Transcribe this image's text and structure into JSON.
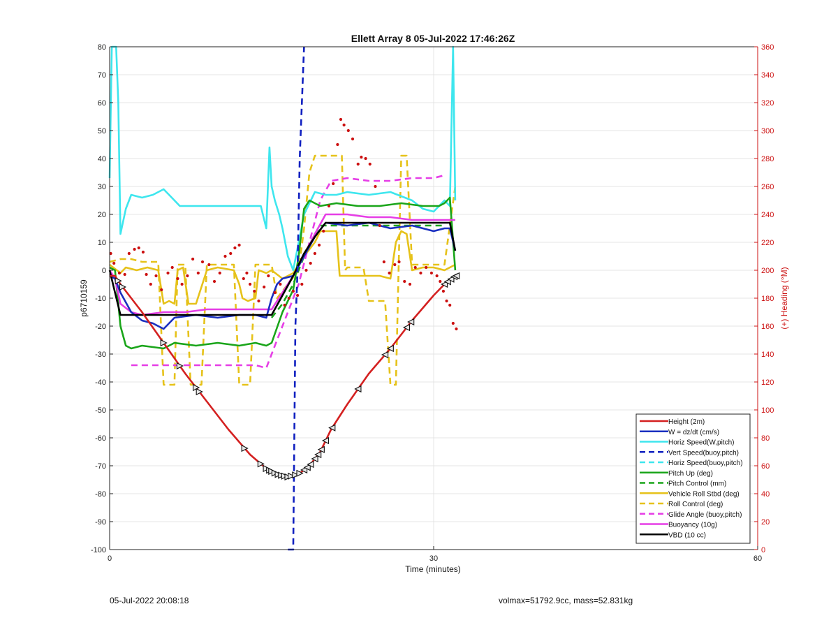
{
  "footer": {
    "timestamp": "05-Jul-2022 20:08:18",
    "info": "volmax=51792.9cc, mass=52.831kg"
  },
  "chart_data": {
    "type": "line",
    "title": "Ellett Array 8 05-Jul-2022 17:46:26Z",
    "xlabel": "Time (minutes)",
    "ylabel": "p6710159",
    "y2label": "(+) Heading (°M)",
    "xlim": [
      0,
      60
    ],
    "ylim": [
      -100,
      80
    ],
    "y2lim": [
      0,
      360
    ],
    "xticks": [
      0,
      30,
      60
    ],
    "yticks": [
      -100,
      -90,
      -80,
      -70,
      -60,
      -50,
      -40,
      -30,
      -20,
      -10,
      0,
      10,
      20,
      30,
      40,
      50,
      60,
      70,
      80
    ],
    "y2ticks": [
      0,
      20,
      40,
      60,
      80,
      100,
      120,
      140,
      160,
      180,
      200,
      220,
      240,
      260,
      280,
      300,
      320,
      340,
      360
    ],
    "grid": true,
    "legend_position": "bottom-right",
    "colors": {
      "height": "#d42020",
      "w": "#1a2fc0",
      "horiz": "#3ee6ee",
      "vert_buoy": "#1020c0",
      "horiz_buoy": "#3ee6ee",
      "pitch": "#1aa51a",
      "pitch_ctrl": "#1aa51a",
      "roll": "#e6c21a",
      "roll_ctrl": "#e6c21a",
      "glide": "#e63ee6",
      "buoy": "#e63ee6",
      "vbd": "#000000",
      "heading": "#cc1010",
      "y2axis": "#cc1010"
    },
    "series": [
      {
        "key": "height",
        "name": "Height (2m)",
        "style": "solid",
        "x": [
          0.0,
          0.5,
          1.0,
          3.0,
          5.0,
          7.0,
          9.0,
          11.0,
          13.0,
          14.5,
          15.5,
          16.5,
          17.5,
          18.5,
          19.5,
          20.5,
          22.0,
          24.0,
          26.0,
          28.0,
          30.0,
          31.0,
          32.0
        ],
        "y": [
          -2,
          -2,
          -5,
          -15,
          -26,
          -37,
          -47,
          -57,
          -66,
          -71,
          -73,
          -74,
          -73,
          -70,
          -65,
          -57,
          -48,
          -37,
          -28,
          -18,
          -9,
          -5,
          -2
        ]
      },
      {
        "key": "w",
        "name": "W = dz/dt (cm/s)",
        "style": "solid",
        "x": [
          0.0,
          0.5,
          1.0,
          2.0,
          3.0,
          4.0,
          5.0,
          6.0,
          8.0,
          10.0,
          12.0,
          13.5,
          14.5,
          15.0,
          15.5,
          16.0,
          17.0,
          18.0,
          19.0,
          20.0,
          22.0,
          24.0,
          26.0,
          28.0,
          30.0,
          31.0,
          31.5,
          32.0
        ],
        "y": [
          -2,
          -3,
          -8,
          -15,
          -18,
          -19,
          -21,
          -17,
          -16,
          -17,
          -16,
          -16,
          -17,
          -10,
          -5,
          -3,
          -2,
          5,
          12,
          17,
          16,
          17,
          15,
          16,
          14,
          15,
          15,
          7
        ]
      },
      {
        "key": "horiz",
        "name": "Horiz Speed(W,pitch)",
        "style": "solid",
        "x": [
          0.0,
          0.2,
          0.4,
          0.6,
          0.8,
          1.0,
          1.5,
          2.0,
          3.0,
          4.0,
          5.0,
          5.5,
          6.5,
          8.0,
          10.0,
          12.0,
          14.0,
          14.5,
          14.8,
          15.0,
          15.3,
          15.7,
          16.0,
          16.5,
          17.0,
          17.5,
          18.0,
          19.0,
          20.0,
          21.0,
          22.0,
          24.0,
          26.0,
          28.0,
          29.0,
          30.0,
          31.0,
          31.5,
          31.8,
          32.0
        ],
        "y": [
          33,
          80,
          80,
          80,
          60,
          13,
          22,
          27,
          26,
          27,
          29,
          27,
          23,
          23,
          23,
          23,
          23,
          15,
          44,
          30,
          25,
          20,
          15,
          5,
          0,
          10,
          20,
          28,
          27,
          27,
          28,
          27,
          28,
          25,
          22,
          21,
          25,
          23,
          80,
          25
        ]
      },
      {
        "key": "vert_buoy",
        "name": "Vert Speed(buoy,pitch)",
        "style": "dashed",
        "x": [
          16.5,
          17.0,
          17.2,
          17.4,
          17.6,
          18.0
        ],
        "y": [
          -100,
          -100,
          -20,
          0,
          40,
          80
        ]
      },
      {
        "key": "horiz_buoy",
        "name": "Horiz Speed(buoy,pitch)",
        "style": "dashed",
        "x": [],
        "y": []
      },
      {
        "key": "pitch",
        "name": "Pitch Up (deg)",
        "style": "solid",
        "x": [
          0.0,
          0.5,
          1.0,
          1.5,
          2.0,
          3.0,
          5.0,
          6.0,
          8.0,
          10.0,
          12.0,
          13.5,
          14.5,
          15.0,
          16.0,
          17.0,
          17.5,
          18.0,
          18.5,
          19.5,
          21.0,
          23.0,
          25.0,
          27.0,
          29.0,
          30.5,
          31.0,
          31.5,
          32.0
        ],
        "y": [
          1,
          0,
          -20,
          -27,
          -28,
          -27,
          -28,
          -26,
          -27,
          -26,
          -27,
          -26,
          -27,
          -26,
          -15,
          -7,
          5,
          22,
          25,
          23,
          24,
          23,
          23,
          24,
          23,
          23,
          24,
          26,
          0
        ]
      },
      {
        "key": "pitch_ctrl",
        "name": "Pitch Control (mm)",
        "style": "dashed",
        "x": [
          15.0,
          16.0,
          17.0,
          18.0,
          19.0,
          19.5,
          20.0,
          22.0,
          25.0,
          28.0,
          31.0
        ],
        "y": [
          -17,
          -12,
          -5,
          5,
          13,
          16,
          16,
          16,
          16,
          16,
          16
        ]
      },
      {
        "key": "roll",
        "name": "Vehicle Roll Stbd (deg)",
        "style": "solid",
        "x": [
          0.0,
          1.0,
          1.5,
          2.5,
          3.5,
          4.5,
          5.0,
          5.5,
          6.0,
          6.3,
          6.8,
          7.3,
          8.0,
          9.0,
          10.0,
          11.5,
          12.0,
          12.3,
          12.8,
          13.5,
          13.8,
          14.5,
          15.0,
          16.0,
          17.0,
          18.0,
          19.0,
          19.5,
          20.0,
          21.0,
          21.3,
          22.0,
          23.0,
          24.0,
          25.0,
          26.0,
          26.5,
          27.0,
          27.5,
          28.0,
          29.0,
          30.0,
          31.0,
          32.0
        ],
        "y": [
          2,
          -1,
          1,
          0,
          1,
          0,
          -12,
          -11,
          -12,
          0,
          1,
          -12,
          -12,
          0,
          1,
          0,
          -5,
          -10,
          -11,
          -10,
          0,
          -1,
          0,
          -3,
          -1,
          5,
          10,
          14,
          14,
          14,
          -2,
          -2,
          -2,
          -2,
          -2,
          -3,
          10,
          14,
          13,
          0,
          1,
          1,
          0,
          2
        ]
      },
      {
        "key": "roll_ctrl",
        "name": "Roll Control (deg)",
        "style": "dashed",
        "x": [
          0.0,
          1.0,
          2.0,
          3.0,
          4.5,
          5.0,
          6.0,
          6.3,
          7.0,
          7.5,
          8.5,
          9.0,
          11.5,
          12.0,
          13.0,
          13.5,
          14.0,
          15.0,
          15.5,
          16.5,
          17.5,
          18.0,
          18.5,
          19.0,
          19.5,
          20.0,
          20.5,
          21.5,
          21.8,
          22.0,
          23.5,
          24.0,
          25.0,
          25.5,
          26.0,
          26.5,
          27.0,
          27.5,
          28.0,
          30.0,
          31.0,
          32.0
        ],
        "y": [
          3,
          4,
          4,
          3,
          3,
          -41,
          -41,
          2,
          2,
          -41,
          -41,
          2,
          2,
          -41,
          -41,
          2,
          2,
          2,
          -10,
          -5,
          0,
          15,
          35,
          41,
          41,
          41,
          41,
          41,
          0,
          1,
          1,
          -11,
          -11,
          -11,
          -41,
          -41,
          41,
          41,
          2,
          2,
          2,
          30
        ]
      },
      {
        "key": "glide",
        "name": "Glide Angle (buoy,pitch)",
        "style": "dashed",
        "x": [
          2.0,
          4.0,
          6.0,
          8.0,
          10.0,
          12.0,
          13.5,
          14.5,
          15.5,
          16.5,
          17.5,
          18.5,
          19.5,
          20.5,
          22.0,
          24.0,
          26.0,
          28.0,
          30.0,
          31.0
        ],
        "y": [
          -34,
          -34,
          -34,
          -34,
          -34,
          -34,
          -34,
          -35,
          -25,
          -15,
          -5,
          10,
          25,
          32,
          33,
          32,
          32,
          33,
          33,
          34
        ]
      },
      {
        "key": "buoy",
        "name": "Buoyancy (10g)",
        "style": "solid",
        "x": [
          0.0,
          0.5,
          1.0,
          2.0,
          3.0,
          5.0,
          7.0,
          9.0,
          11.0,
          13.0,
          14.5,
          15.0,
          16.0,
          17.0,
          18.0,
          19.0,
          20.0,
          22.0,
          24.0,
          26.0,
          28.0,
          30.0,
          31.0,
          32.0
        ],
        "y": [
          0,
          -3,
          -12,
          -15,
          -16,
          -15,
          -15,
          -14,
          -14,
          -14,
          -14,
          -14,
          -8,
          -2,
          5,
          13,
          20,
          20,
          19,
          19,
          18,
          18,
          18,
          18
        ]
      },
      {
        "key": "vbd",
        "name": "VBD (10 cc)",
        "style": "solid",
        "x": [
          0.0,
          0.5,
          1.0,
          2.0,
          4.0,
          6.0,
          8.0,
          10.0,
          12.0,
          14.0,
          14.5,
          15.0,
          16.0,
          17.0,
          18.0,
          19.0,
          20.0,
          22.0,
          25.0,
          28.0,
          31.0,
          31.5,
          32.0
        ],
        "y": [
          0,
          -8,
          -16,
          -16,
          -16,
          -16,
          -16,
          -16,
          -16,
          -16,
          -16,
          -16,
          -9,
          -2,
          6,
          12,
          17,
          17,
          17,
          17,
          17,
          17,
          7
        ]
      }
    ],
    "height_markers_x": [
      0.8,
      1.2,
      5.0,
      6.5,
      8.0,
      8.3,
      12.5,
      14.0,
      14.5,
      14.8,
      15.0,
      15.3,
      15.6,
      15.9,
      16.2,
      16.5,
      16.8,
      17.2,
      17.6,
      18.0,
      18.3,
      18.6,
      19.0,
      19.3,
      19.6,
      20.0,
      20.6,
      23.0,
      25.5,
      26.0,
      27.5,
      27.9,
      31.0,
      31.3,
      31.6,
      31.9,
      32.1
    ],
    "heading_points": {
      "x": [
        0.1,
        0.4,
        0.9,
        1.4,
        1.8,
        2.3,
        2.7,
        3.1,
        3.4,
        3.8,
        4.3,
        4.8,
        5.4,
        5.8,
        6.3,
        6.7,
        7.2,
        7.7,
        8.2,
        8.6,
        9.2,
        9.7,
        10.2,
        10.7,
        11.2,
        11.6,
        12.0,
        12.4,
        12.7,
        13.0,
        13.4,
        13.8,
        14.3,
        14.7,
        15.3,
        15.8,
        16.2,
        16.6,
        17.0,
        17.4,
        17.8,
        18.2,
        18.6,
        19.0,
        19.4,
        19.8,
        20.3,
        20.7,
        21.1,
        21.4,
        21.7,
        22.1,
        22.5,
        23.0,
        23.3,
        23.7,
        24.1,
        24.6,
        25.0,
        25.4,
        25.9,
        26.4,
        26.8,
        27.3,
        27.8,
        28.3,
        28.8,
        29.3,
        29.8,
        30.3,
        30.6,
        30.9,
        31.2,
        31.5,
        31.8,
        32.1
      ],
      "y": [
        212,
        205,
        198,
        197,
        212,
        215,
        216,
        213,
        197,
        190,
        196,
        186,
        198,
        202,
        194,
        190,
        196,
        208,
        198,
        206,
        204,
        192,
        198,
        210,
        212,
        216,
        218,
        194,
        198,
        190,
        185,
        178,
        188,
        196,
        184,
        190,
        175,
        180,
        185,
        182,
        190,
        200,
        205,
        212,
        218,
        228,
        246,
        262,
        290,
        308,
        304,
        300,
        294,
        276,
        281,
        280,
        276,
        260,
        232,
        206,
        198,
        204,
        206,
        192,
        190,
        202,
        198,
        202,
        198,
        196,
        192,
        185,
        178,
        175,
        162,
        158
      ]
    }
  }
}
